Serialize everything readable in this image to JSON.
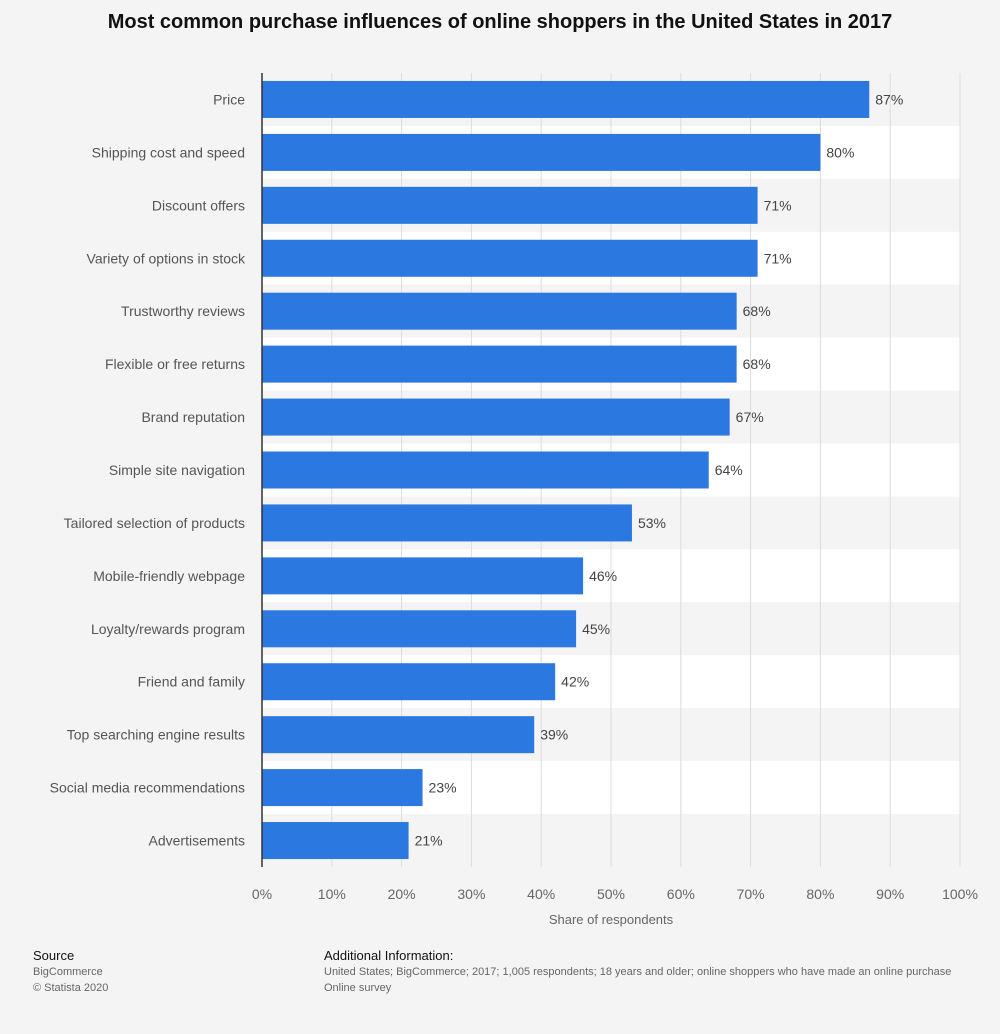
{
  "chart_data": {
    "type": "bar",
    "orientation": "horizontal",
    "title": "Most common purchase influences of online shoppers in the United States in 2017",
    "xlabel": "Share of respondents",
    "ylabel": "",
    "xlim": [
      0,
      100
    ],
    "x_ticks": [
      "0%",
      "10%",
      "20%",
      "30%",
      "40%",
      "50%",
      "60%",
      "70%",
      "80%",
      "90%",
      "100%"
    ],
    "grid": true,
    "bar_color": "#2a78e0",
    "categories": [
      "Price",
      "Shipping cost and speed",
      "Discount offers",
      "Variety of options in stock",
      "Trustworthy reviews",
      "Flexible or free returns",
      "Brand reputation",
      "Simple site navigation",
      "Tailored selection of products",
      "Mobile-friendly webpage",
      "Loyalty/rewards program",
      "Friend and family",
      "Top searching engine results",
      "Social media recommendations",
      "Advertisements"
    ],
    "values": [
      87,
      80,
      71,
      71,
      68,
      68,
      67,
      64,
      53,
      46,
      45,
      42,
      39,
      23,
      21
    ],
    "value_labels": [
      "87%",
      "80%",
      "71%",
      "71%",
      "68%",
      "68%",
      "67%",
      "64%",
      "53%",
      "46%",
      "45%",
      "42%",
      "39%",
      "23%",
      "21%"
    ]
  },
  "footer": {
    "source_heading": "Source",
    "source_name": "BigCommerce",
    "copyright": "© Statista 2020",
    "info_heading": "Additional Information:",
    "info_text": "United States; BigCommerce; 2017; 1,005 respondents; 18 years and older; online shoppers who have made an online purchase",
    "survey_type": "Online survey"
  }
}
